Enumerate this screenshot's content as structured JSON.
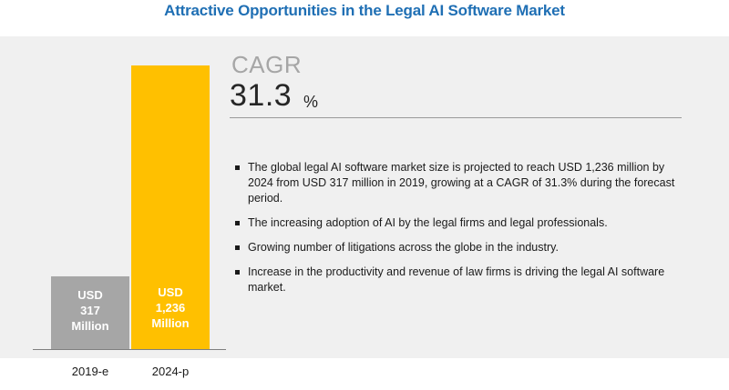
{
  "title": "Attractive Opportunities in the Legal AI Software Market",
  "cagr": {
    "label": "CAGR",
    "value": "31.3",
    "unit": "%"
  },
  "bullets": [
    "The global legal AI software market size is projected to reach USD 1,236 million by 2024 from USD 317 million in 2019, growing at a CAGR of 31.3% during the forecast period.",
    "The increasing adoption of AI by the legal firms and legal professionals.",
    "Growing number of litigations across the globe in the industry.",
    "Increase in the productivity and revenue of law firms is driving the legal AI software market."
  ],
  "colors": {
    "title": "#1f6fb4",
    "bar_2019": "#a6a6a6",
    "bar_2024": "#ffc000",
    "panel": "#f0f0f0"
  },
  "chart_data": {
    "type": "bar",
    "categories": [
      "2019-e",
      "2024-p"
    ],
    "values": [
      317,
      1236
    ],
    "data_labels": [
      [
        "USD",
        "317",
        "Million"
      ],
      [
        "USD",
        "1,236",
        "Million"
      ]
    ],
    "bar_colors": [
      "#a6a6a6",
      "#ffc000"
    ],
    "unit": "USD Million",
    "ylim": [
      0,
      1236
    ],
    "grid": false,
    "legend": "none"
  }
}
